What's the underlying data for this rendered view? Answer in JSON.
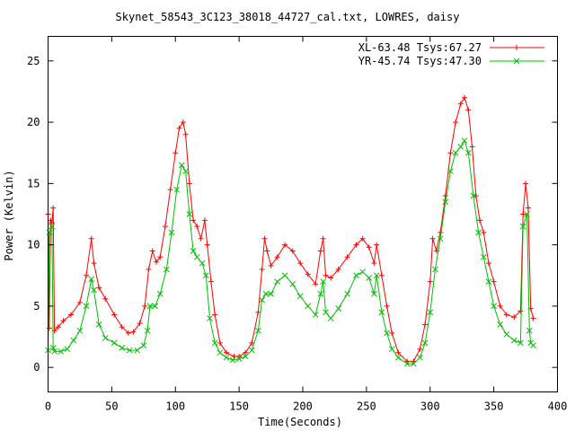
{
  "chart_data": {
    "type": "line",
    "title": "Skynet_58543_3C123_38018_44727_cal.txt, LOWRES, daisy",
    "xlabel": "Time(Seconds)",
    "ylabel": "Power (Kelvin)",
    "xlim": [
      0,
      400
    ],
    "ylim": [
      -2,
      27
    ],
    "xticks": [
      0,
      50,
      100,
      150,
      200,
      250,
      300,
      350,
      400
    ],
    "yticks": [
      0,
      5,
      10,
      15,
      20,
      25
    ],
    "xtick_labels": [
      "0",
      "50",
      "100",
      "150",
      "200",
      "250",
      "300",
      "350",
      "400"
    ],
    "ytick_labels": [
      "0",
      "5",
      "10",
      "15",
      "20",
      "25"
    ],
    "grid": false,
    "legend_position": "top-right",
    "series": [
      {
        "name": "XL-63.48 Tsys:67.27",
        "color": "#ff0000",
        "marker": "plus",
        "points": [
          [
            0,
            12.5
          ],
          [
            1,
            3.2
          ],
          [
            2,
            12.0
          ],
          [
            3,
            11.8
          ],
          [
            4,
            13.0
          ],
          [
            5,
            3.0
          ],
          [
            8,
            3.3
          ],
          [
            12,
            3.8
          ],
          [
            18,
            4.3
          ],
          [
            25,
            5.3
          ],
          [
            30,
            7.5
          ],
          [
            34,
            10.5
          ],
          [
            36,
            8.5
          ],
          [
            40,
            6.5
          ],
          [
            45,
            5.6
          ],
          [
            52,
            4.3
          ],
          [
            58,
            3.3
          ],
          [
            63,
            2.8
          ],
          [
            67,
            2.9
          ],
          [
            72,
            3.6
          ],
          [
            76,
            5.0
          ],
          [
            79,
            8.0
          ],
          [
            82,
            9.5
          ],
          [
            85,
            8.6
          ],
          [
            88,
            9.0
          ],
          [
            92,
            11.5
          ],
          [
            96,
            14.5
          ],
          [
            100,
            17.5
          ],
          [
            103,
            19.5
          ],
          [
            106,
            20.0
          ],
          [
            108,
            19.0
          ],
          [
            111,
            15.0
          ],
          [
            114,
            12.0
          ],
          [
            117,
            11.5
          ],
          [
            120,
            10.5
          ],
          [
            123,
            12.0
          ],
          [
            125,
            10.0
          ],
          [
            128,
            7.0
          ],
          [
            131,
            4.3
          ],
          [
            135,
            2.0
          ],
          [
            140,
            1.2
          ],
          [
            146,
            0.9
          ],
          [
            150,
            0.9
          ],
          [
            155,
            1.2
          ],
          [
            160,
            2.0
          ],
          [
            165,
            4.5
          ],
          [
            168,
            8.0
          ],
          [
            170,
            10.5
          ],
          [
            172,
            9.5
          ],
          [
            175,
            8.3
          ],
          [
            180,
            9.0
          ],
          [
            186,
            10.0
          ],
          [
            192,
            9.5
          ],
          [
            198,
            8.5
          ],
          [
            204,
            7.6
          ],
          [
            210,
            6.8
          ],
          [
            214,
            9.5
          ],
          [
            216,
            10.5
          ],
          [
            218,
            7.5
          ],
          [
            222,
            7.3
          ],
          [
            228,
            8.0
          ],
          [
            235,
            9.0
          ],
          [
            242,
            10.0
          ],
          [
            247,
            10.5
          ],
          [
            252,
            9.8
          ],
          [
            256,
            8.5
          ],
          [
            258,
            10.0
          ],
          [
            262,
            7.5
          ],
          [
            266,
            5.0
          ],
          [
            270,
            2.8
          ],
          [
            275,
            1.2
          ],
          [
            282,
            0.5
          ],
          [
            287,
            0.5
          ],
          [
            292,
            1.5
          ],
          [
            296,
            3.5
          ],
          [
            300,
            7.0
          ],
          [
            302,
            10.5
          ],
          [
            305,
            9.5
          ],
          [
            308,
            11.0
          ],
          [
            312,
            14.0
          ],
          [
            316,
            17.5
          ],
          [
            320,
            20.0
          ],
          [
            324,
            21.5
          ],
          [
            327,
            22.0
          ],
          [
            330,
            21.0
          ],
          [
            333,
            18.0
          ],
          [
            336,
            14.0
          ],
          [
            339,
            12.0
          ],
          [
            342,
            11.0
          ],
          [
            346,
            8.5
          ],
          [
            350,
            7.0
          ],
          [
            355,
            5.0
          ],
          [
            360,
            4.3
          ],
          [
            366,
            4.1
          ],
          [
            371,
            4.6
          ],
          [
            373,
            12.5
          ],
          [
            375,
            15.0
          ],
          [
            377,
            13.0
          ],
          [
            379,
            4.8
          ],
          [
            381,
            4.0
          ]
        ]
      },
      {
        "name": "YR-45.74 Tsys:47.30",
        "color": "#00c000",
        "marker": "cross",
        "points": [
          [
            0,
            1.4
          ],
          [
            1,
            11.0
          ],
          [
            3,
            11.5
          ],
          [
            4,
            1.6
          ],
          [
            5,
            1.3
          ],
          [
            10,
            1.3
          ],
          [
            15,
            1.5
          ],
          [
            20,
            2.2
          ],
          [
            25,
            3.0
          ],
          [
            30,
            5.0
          ],
          [
            34,
            7.2
          ],
          [
            36,
            6.3
          ],
          [
            40,
            3.5
          ],
          [
            45,
            2.4
          ],
          [
            52,
            2.0
          ],
          [
            58,
            1.6
          ],
          [
            64,
            1.4
          ],
          [
            70,
            1.4
          ],
          [
            75,
            1.8
          ],
          [
            78,
            3.0
          ],
          [
            80,
            5.0
          ],
          [
            84,
            5.0
          ],
          [
            88,
            6.0
          ],
          [
            93,
            8.0
          ],
          [
            97,
            11.0
          ],
          [
            101,
            14.5
          ],
          [
            105,
            16.5
          ],
          [
            108,
            16.0
          ],
          [
            111,
            12.5
          ],
          [
            114,
            9.5
          ],
          [
            117,
            9.0
          ],
          [
            121,
            8.5
          ],
          [
            124,
            7.5
          ],
          [
            127,
            4.0
          ],
          [
            131,
            2.0
          ],
          [
            135,
            1.2
          ],
          [
            140,
            0.8
          ],
          [
            145,
            0.6
          ],
          [
            150,
            0.7
          ],
          [
            155,
            0.9
          ],
          [
            160,
            1.4
          ],
          [
            165,
            3.0
          ],
          [
            168,
            5.5
          ],
          [
            171,
            6.0
          ],
          [
            175,
            6.0
          ],
          [
            180,
            7.0
          ],
          [
            186,
            7.5
          ],
          [
            192,
            6.8
          ],
          [
            198,
            5.8
          ],
          [
            204,
            5.0
          ],
          [
            210,
            4.3
          ],
          [
            214,
            6.0
          ],
          [
            216,
            7.0
          ],
          [
            218,
            4.5
          ],
          [
            222,
            4.0
          ],
          [
            228,
            4.8
          ],
          [
            235,
            6.0
          ],
          [
            242,
            7.5
          ],
          [
            247,
            7.8
          ],
          [
            252,
            7.3
          ],
          [
            256,
            6.0
          ],
          [
            258,
            7.5
          ],
          [
            262,
            4.5
          ],
          [
            266,
            2.8
          ],
          [
            270,
            1.5
          ],
          [
            275,
            0.8
          ],
          [
            282,
            0.3
          ],
          [
            287,
            0.3
          ],
          [
            292,
            0.8
          ],
          [
            296,
            2.0
          ],
          [
            300,
            4.5
          ],
          [
            304,
            8.0
          ],
          [
            308,
            10.5
          ],
          [
            312,
            13.5
          ],
          [
            316,
            16.0
          ],
          [
            320,
            17.5
          ],
          [
            324,
            18.0
          ],
          [
            327,
            18.5
          ],
          [
            330,
            17.5
          ],
          [
            334,
            14.0
          ],
          [
            338,
            11.0
          ],
          [
            342,
            9.0
          ],
          [
            346,
            7.0
          ],
          [
            350,
            5.0
          ],
          [
            355,
            3.5
          ],
          [
            360,
            2.7
          ],
          [
            366,
            2.2
          ],
          [
            371,
            2.0
          ],
          [
            373,
            11.5
          ],
          [
            376,
            12.5
          ],
          [
            378,
            3.0
          ],
          [
            379,
            2.0
          ],
          [
            381,
            1.8
          ]
        ]
      }
    ]
  }
}
